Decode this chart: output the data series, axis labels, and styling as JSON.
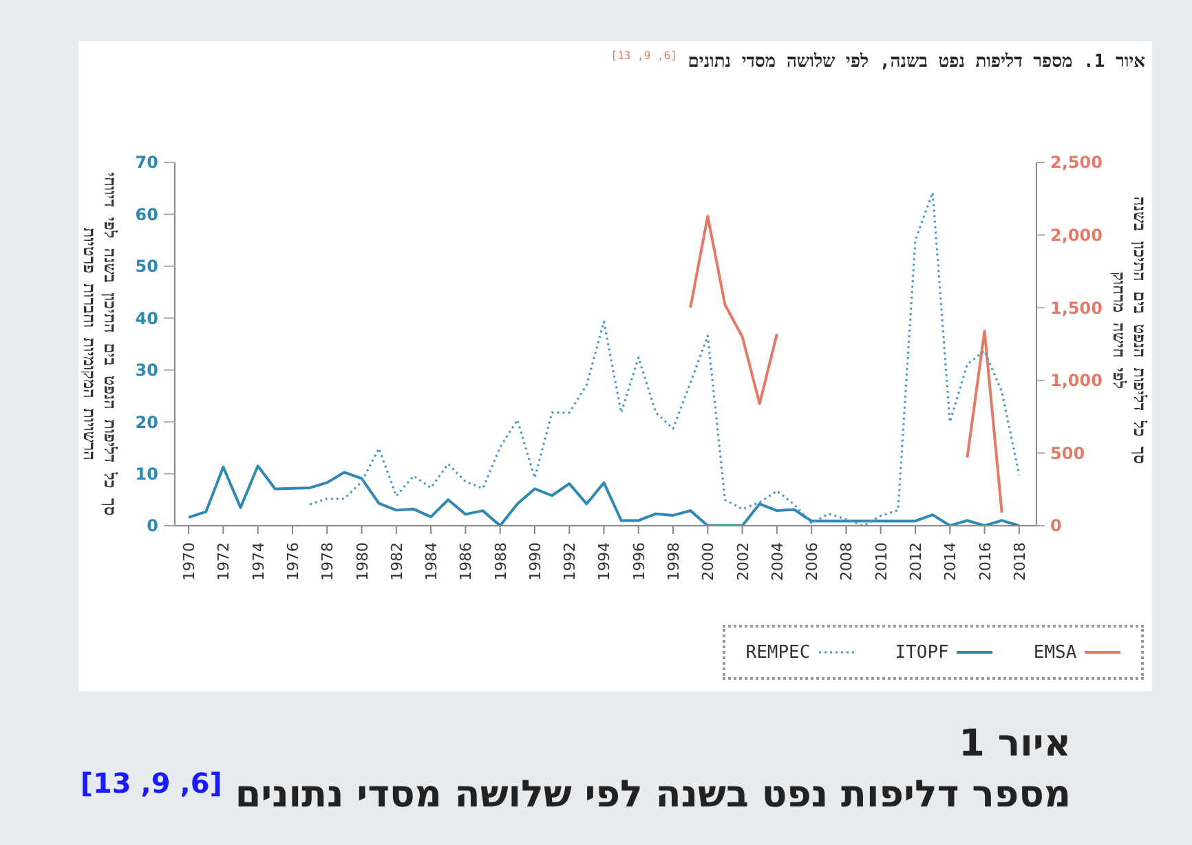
{
  "chart_data": {
    "type": "line",
    "title": "איור 1. מספר דליפות נפט בשנה, לפי שלושה מסדי נתונים $^{[6, 9, 13]}$",
    "ylabel": "סך כל דליפות הנפט בים התיכון בשנה לפי דיווחי הרשויות המקומיות וחברות פרטיות",
    "y2label": "סך כל דליפות הנפט בים התיכון בשנה לפי חישה מרחוק",
    "x": [
      1970,
      1971,
      1972,
      1973,
      1974,
      1975,
      1976,
      1977,
      1978,
      1979,
      1980,
      1981,
      1982,
      1983,
      1984,
      1985,
      1986,
      1987,
      1988,
      1989,
      1990,
      1991,
      1992,
      1993,
      1994,
      1995,
      1996,
      1997,
      1998,
      1999,
      2000,
      2001,
      2002,
      2003,
      2004,
      2005,
      2006,
      2007,
      2008,
      2009,
      2010,
      2011,
      2012,
      2013,
      2014,
      2015,
      2016,
      2017,
      2018
    ],
    "series": [
      {
        "name": "EMSA",
        "color": "#e47a66",
        "axis": "y2",
        "line_style": "solid",
        "values": [
          null,
          null,
          null,
          null,
          null,
          null,
          null,
          null,
          null,
          null,
          null,
          null,
          null,
          null,
          null,
          null,
          null,
          null,
          null,
          null,
          null,
          null,
          null,
          null,
          null,
          null,
          null,
          null,
          null,
          1500,
          2130,
          1520,
          1300,
          840,
          1320,
          null,
          null,
          null,
          null,
          null,
          null,
          null,
          null,
          null,
          null,
          470,
          1340,
          90,
          null
        ]
      },
      {
        "name": "ITOPF",
        "color": "#2f88b4",
        "line_style": "solid",
        "values": [
          1.6,
          2.7,
          11.3,
          3.5,
          11.5,
          7.1,
          7.2,
          7.3,
          8.3,
          10.3,
          9.1,
          4.3,
          3,
          3.2,
          1.7,
          5,
          2.2,
          2.9,
          0,
          4.2,
          7.1,
          5.8,
          8.1,
          4.2,
          8.3,
          1,
          1,
          2.3,
          2,
          2.9,
          0,
          0,
          0,
          4.2,
          2.9,
          3.1,
          0.9,
          0.9,
          0.9,
          0.9,
          0.9,
          0.9,
          0.9,
          2.1,
          0,
          1,
          0,
          1,
          0
        ]
      },
      {
        "name": "REMPEC",
        "color": "#4d9cc6",
        "line_style": "dotted",
        "values": [
          null,
          null,
          null,
          null,
          null,
          null,
          null,
          4.1,
          5.2,
          5.2,
          8.5,
          14.9,
          5.7,
          9.6,
          7.3,
          11.9,
          8.5,
          7.2,
          15.1,
          20.4,
          9.2,
          21.8,
          21.8,
          27.1,
          39.3,
          21.8,
          32.4,
          21.8,
          18.7,
          27.5,
          36.6,
          5,
          3.2,
          4.5,
          6.7,
          4.1,
          0.5,
          2.3,
          1.2,
          0,
          1.9,
          3,
          55,
          64.2,
          20,
          31.1,
          33.7,
          25.8,
          9.8
        ]
      }
    ],
    "xlim": [
      1969.2,
      2019
    ],
    "xticks": [
      1970,
      1972,
      1974,
      1976,
      1978,
      1980,
      1982,
      1984,
      1986,
      1988,
      1990,
      1992,
      1994,
      1996,
      1998,
      2000,
      2002,
      2004,
      2006,
      2008,
      2010,
      2012,
      2014,
      2016,
      2018
    ],
    "ylim": [
      0,
      70
    ],
    "yticks": [
      0,
      10,
      20,
      30,
      40,
      50,
      60,
      70
    ],
    "y2lim": [
      0,
      2500
    ],
    "y2ticks": [
      0,
      {
        "value": 500,
        "label": "500"
      },
      {
        "value": 1000,
        "label": "1,000"
      },
      {
        "value": 1500,
        "label": "1,500"
      },
      {
        "value": 2000,
        "label": "2,000"
      },
      {
        "value": 2500,
        "label": "2,500"
      }
    ],
    "legend": "bottom right",
    "grid": false,
    "annotations": [
      "איור 1",
      "מספר דליפות נפט בשנה לפי שלושה מסדי נתונים $^{[6, 9, 13]}$"
    ]
  }
}
